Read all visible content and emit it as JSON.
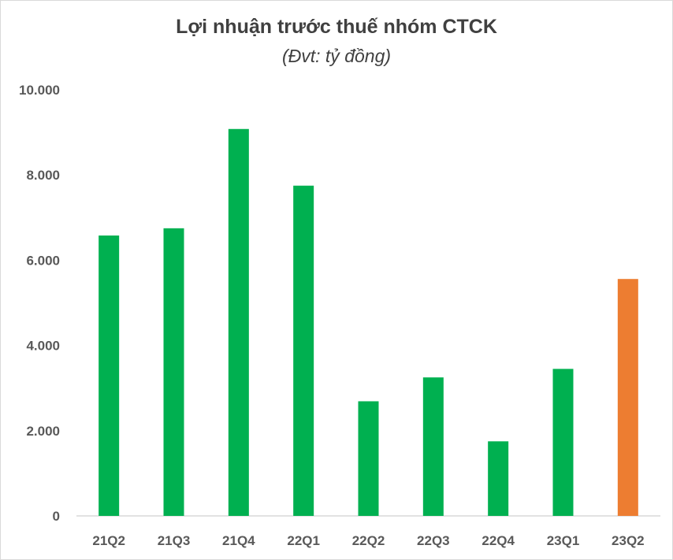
{
  "chart_data": {
    "type": "bar",
    "title": "Lợi nhuận trước thuế nhóm CTCK",
    "subtitle": "(Đvt: tỷ đồng)",
    "xlabel": "",
    "ylabel": "",
    "ylim": [
      0,
      10000
    ],
    "yticks": [
      0,
      2000,
      4000,
      6000,
      8000,
      10000
    ],
    "ytick_labels": [
      "0",
      "2.000",
      "4.000",
      "6.000",
      "8.000",
      "10.000"
    ],
    "categories": [
      "21Q2",
      "21Q3",
      "21Q4",
      "22Q1",
      "22Q2",
      "22Q3",
      "22Q4",
      "23Q1",
      "23Q2"
    ],
    "values": [
      6580,
      6750,
      9080,
      7750,
      2690,
      3250,
      1750,
      3450,
      5560
    ],
    "bar_colors": [
      "#00b050",
      "#00b050",
      "#00b050",
      "#00b050",
      "#00b050",
      "#00b050",
      "#00b050",
      "#00b050",
      "#ed7d31"
    ],
    "grid": false,
    "legend": "none"
  }
}
